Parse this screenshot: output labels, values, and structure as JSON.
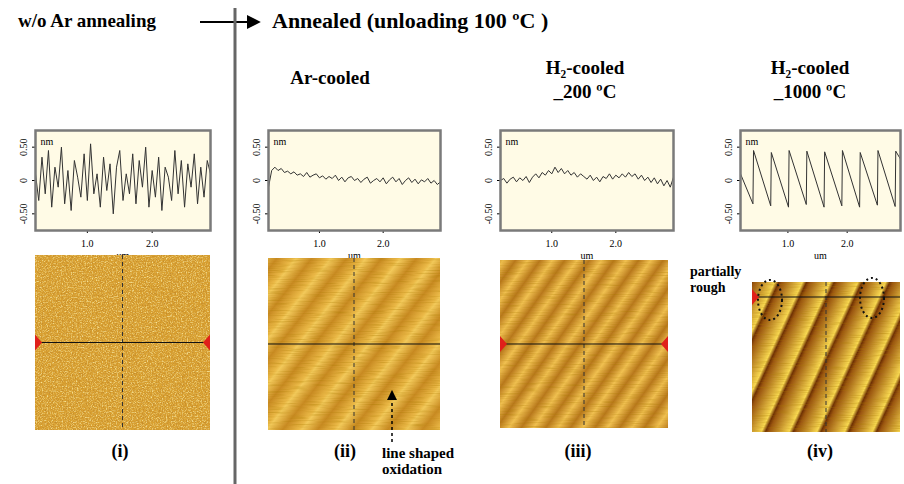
{
  "header": {
    "left_title": "w/o Ar annealing",
    "right_title": "Annealed (unloading 100 ºC )"
  },
  "chart_data": [
    {
      "type": "line",
      "label": "(i)",
      "y_label": "nm",
      "x_label": "um",
      "xlim": [
        0.2,
        2.9
      ],
      "xticks": [
        {
          "value": 1,
          "label": "1.0"
        },
        {
          "value": 2,
          "label": "2.0"
        }
      ],
      "ylim": [
        -0.75,
        0.75
      ],
      "yticks": [
        {
          "value": 0.5,
          "label": "0.50"
        },
        0,
        {
          "value": -0.5,
          "label": "-0.50"
        }
      ],
      "color": "#333333",
      "line_style": "solid",
      "x": [
        0.2,
        0.25,
        0.3,
        0.35,
        0.4,
        0.45,
        0.5,
        0.55,
        0.6,
        0.65,
        0.7,
        0.75,
        0.8,
        0.85,
        0.9,
        0.95,
        1.0,
        1.05,
        1.1,
        1.15,
        1.2,
        1.25,
        1.3,
        1.35,
        1.4,
        1.45,
        1.5,
        1.55,
        1.6,
        1.65,
        1.7,
        1.75,
        1.8,
        1.85,
        1.9,
        1.95,
        2.0,
        2.05,
        2.1,
        2.15,
        2.2,
        2.25,
        2.3,
        2.35,
        2.4,
        2.45,
        2.5,
        2.55,
        2.6,
        2.65,
        2.7,
        2.75,
        2.8,
        2.85,
        2.9
      ],
      "values": [
        0.1,
        -0.3,
        0.35,
        -0.2,
        0.45,
        -0.4,
        0.2,
        -0.1,
        0.5,
        -0.35,
        0.15,
        -0.45,
        0.3,
        0.05,
        -0.25,
        0.4,
        -0.3,
        0.55,
        -0.2,
        0.1,
        -0.4,
        0.35,
        -0.15,
        0.25,
        -0.5,
        0.2,
        0.45,
        -0.3,
        0.1,
        -0.2,
        0.4,
        -0.35,
        0.3,
        -0.1,
        0.5,
        -0.4,
        0.15,
        -0.25,
        0.35,
        -0.45,
        0.2,
        0.05,
        -0.3,
        0.45,
        -0.2,
        0.3,
        -0.4,
        0.25,
        -0.1,
        0.4,
        -0.35,
        0.2,
        -0.25,
        0.3,
        0.1
      ]
    },
    {
      "type": "line",
      "title": "Ar-cooled",
      "label": "(ii)",
      "y_label": "nm",
      "x_label": "um",
      "annotations": [
        "line shaped oxidation"
      ],
      "xlim": [
        0.2,
        2.9
      ],
      "xticks": [
        {
          "value": 1,
          "label": "1.0"
        },
        {
          "value": 2,
          "label": "2.0"
        }
      ],
      "ylim": [
        -0.75,
        0.75
      ],
      "yticks": [
        {
          "value": 0.5,
          "label": "0.50"
        },
        0,
        {
          "value": -0.5,
          "label": "-0.50"
        }
      ],
      "color": "#333333",
      "line_style": "solid",
      "x": [
        0.2,
        0.25,
        0.3,
        0.35,
        0.4,
        0.45,
        0.5,
        0.55,
        0.6,
        0.65,
        0.7,
        0.75,
        0.8,
        0.85,
        0.9,
        0.95,
        1.0,
        1.05,
        1.1,
        1.15,
        1.2,
        1.25,
        1.3,
        1.35,
        1.4,
        1.45,
        1.5,
        1.55,
        1.6,
        1.65,
        1.7,
        1.75,
        1.8,
        1.85,
        1.9,
        1.95,
        2.0,
        2.05,
        2.1,
        2.15,
        2.2,
        2.25,
        2.3,
        2.35,
        2.4,
        2.45,
        2.5,
        2.55,
        2.6,
        2.65,
        2.7,
        2.75,
        2.8,
        2.85,
        2.9
      ],
      "values": [
        -0.1,
        0.15,
        0.2,
        0.15,
        0.18,
        0.12,
        0.14,
        0.1,
        0.13,
        0.08,
        0.1,
        0.06,
        0.12,
        0.05,
        0.08,
        0.1,
        0.04,
        0.07,
        0.02,
        0.06,
        0.03,
        0.08,
        0.0,
        0.05,
        -0.02,
        0.04,
        0.06,
        0.0,
        0.03,
        -0.03,
        0.02,
        0.05,
        -0.04,
        0.0,
        0.03,
        -0.02,
        0.04,
        -0.05,
        0.01,
        0.05,
        -0.02,
        0.03,
        -0.06,
        0.0,
        0.04,
        -0.03,
        0.02,
        -0.05,
        0.01,
        -0.02,
        0.03,
        -0.04,
        0.0,
        -0.06,
        -0.02
      ]
    },
    {
      "type": "line",
      "title": "H₂-cooled _200 ºC",
      "label": "(iii)",
      "y_label": "nm",
      "x_label": "um",
      "xlim": [
        0.2,
        2.9
      ],
      "xticks": [
        {
          "value": 1,
          "label": "1.0"
        },
        {
          "value": 2,
          "label": "2.0"
        }
      ],
      "ylim": [
        -0.75,
        0.75
      ],
      "yticks": [
        {
          "value": 0.5,
          "label": "0.50"
        },
        0,
        {
          "value": -0.5,
          "label": "-0.50"
        }
      ],
      "color": "#333333",
      "line_style": "solid",
      "x": [
        0.2,
        0.25,
        0.3,
        0.35,
        0.4,
        0.45,
        0.5,
        0.55,
        0.6,
        0.65,
        0.7,
        0.75,
        0.8,
        0.85,
        0.9,
        0.95,
        1.0,
        1.05,
        1.1,
        1.15,
        1.2,
        1.25,
        1.3,
        1.35,
        1.4,
        1.45,
        1.5,
        1.55,
        1.6,
        1.65,
        1.7,
        1.75,
        1.8,
        1.85,
        1.9,
        1.95,
        2.0,
        2.05,
        2.1,
        2.15,
        2.2,
        2.25,
        2.3,
        2.35,
        2.4,
        2.45,
        2.5,
        2.55,
        2.6,
        2.65,
        2.7,
        2.75,
        2.8,
        2.85,
        2.9
      ],
      "values": [
        0.0,
        0.03,
        -0.04,
        0.02,
        0.05,
        -0.02,
        0.04,
        0.0,
        0.06,
        -0.03,
        0.05,
        0.1,
        0.04,
        0.12,
        0.08,
        0.15,
        0.1,
        0.2,
        0.12,
        0.18,
        0.1,
        0.15,
        0.08,
        0.12,
        0.05,
        0.1,
        0.06,
        0.02,
        0.08,
        0.0,
        0.05,
        -0.02,
        0.06,
        0.03,
        0.1,
        0.02,
        0.08,
        0.04,
        0.1,
        0.05,
        0.12,
        0.06,
        0.1,
        0.02,
        0.08,
        0.0,
        0.05,
        -0.03,
        0.04,
        -0.05,
        0.02,
        -0.08,
        0.0,
        -0.1,
        0.05
      ]
    },
    {
      "type": "line",
      "title": "H₂-cooled _1000 ºC",
      "label": "(iv)",
      "y_label": "nm",
      "x_label": "um",
      "annotations": [
        "partially rough"
      ],
      "xlim": [
        0.2,
        2.9
      ],
      "xticks": [
        {
          "value": 1,
          "label": "1.0"
        },
        {
          "value": 2,
          "label": "2.0"
        }
      ],
      "ylim": [
        -0.75,
        0.75
      ],
      "yticks": [
        {
          "value": 0.5,
          "label": "0.50"
        },
        0,
        {
          "value": -0.5,
          "label": "-0.50"
        }
      ],
      "color": "#333333",
      "line_style": "solid",
      "x": [
        0.2,
        0.41,
        0.42,
        0.71,
        0.72,
        1.01,
        1.02,
        1.31,
        1.32,
        1.61,
        1.62,
        1.91,
        1.92,
        2.21,
        2.22,
        2.51,
        2.52,
        2.81,
        2.82,
        2.9
      ],
      "values": [
        0.1,
        -0.35,
        0.45,
        -0.38,
        0.42,
        -0.4,
        0.45,
        -0.36,
        0.44,
        -0.4,
        0.43,
        -0.38,
        0.45,
        -0.4,
        0.42,
        -0.37,
        0.45,
        -0.39,
        0.44,
        0.32
      ]
    }
  ]
}
